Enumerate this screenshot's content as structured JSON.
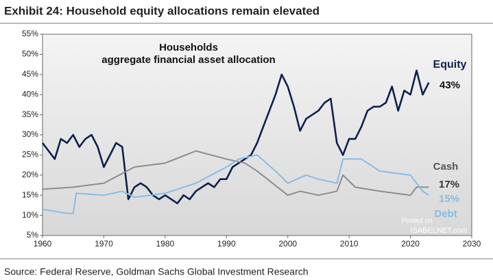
{
  "chart_data": {
    "type": "line",
    "title": "Exhibit 24: Household equity allocations remain elevated",
    "source": "Source: Federal Reserve, Goldman Sachs Global Investment Research",
    "annotations": [
      "Households",
      "aggregate financial asset allocation",
      "Equity",
      "43%",
      "Cash",
      "17%",
      "15%",
      "Debt",
      "Posted on",
      "ISABELNET.com"
    ],
    "xlim": [
      1960,
      2030
    ],
    "xticks": [
      1960,
      1970,
      1980,
      1990,
      2000,
      2010,
      2020,
      2030
    ],
    "ylim": [
      5,
      55
    ],
    "yticks": [
      {
        "value": 5,
        "label": "5%"
      },
      {
        "value": 10,
        "label": "10%"
      },
      {
        "value": 15,
        "label": "15%"
      },
      {
        "value": 20,
        "label": "20%"
      },
      {
        "value": 25,
        "label": "25%"
      },
      {
        "value": 30,
        "label": "30%"
      },
      {
        "value": 35,
        "label": "35%"
      },
      {
        "value": 40,
        "label": "40%"
      },
      {
        "value": 45,
        "label": "45%"
      },
      {
        "value": 50,
        "label": "50%"
      },
      {
        "value": 55,
        "label": "55%"
      }
    ],
    "series": [
      {
        "name": "Equity",
        "color": "#0d1f4d",
        "x": [
          1960,
          1961,
          1962,
          1963,
          1964,
          1965,
          1966,
          1967,
          1968,
          1969,
          1970,
          1971,
          1972,
          1973,
          1974,
          1975,
          1976,
          1977,
          1978,
          1979,
          1980,
          1981,
          1982,
          1983,
          1984,
          1985,
          1986,
          1987,
          1988,
          1989,
          1990,
          1991,
          1992,
          1993,
          1994,
          1995,
          1996,
          1997,
          1998,
          1999,
          2000,
          2001,
          2002,
          2003,
          2004,
          2005,
          2006,
          2007,
          2008,
          2009,
          2010,
          2011,
          2012,
          2013,
          2014,
          2015,
          2016,
          2017,
          2018,
          2019,
          2020,
          2021,
          2022,
          2023
        ],
        "values": [
          28,
          26,
          24,
          29,
          28,
          30,
          27,
          29,
          30,
          27,
          22,
          25,
          28,
          27,
          14,
          17,
          18,
          17,
          15,
          14,
          15,
          14,
          13,
          15,
          14,
          16,
          17,
          18,
          17,
          19,
          19,
          22,
          23,
          24,
          25,
          28,
          32,
          36,
          40,
          45,
          42,
          37,
          31,
          34,
          35,
          36,
          38,
          39,
          28,
          25,
          29,
          29,
          32,
          36,
          37,
          37,
          38,
          42,
          36,
          41,
          40,
          46,
          40,
          43
        ]
      },
      {
        "name": "Cash",
        "color": "#8c8c8c",
        "x": [
          1960,
          1965,
          1970,
          1975,
          1980,
          1985,
          1990,
          1993,
          1995,
          2000,
          2002,
          2005,
          2008,
          2009,
          2011,
          2015,
          2020,
          2021,
          2023
        ],
        "values": [
          16.5,
          17,
          18,
          22,
          23,
          26,
          24,
          23,
          21,
          15,
          16,
          15,
          16,
          20,
          17,
          16,
          15,
          17,
          17
        ]
      },
      {
        "name": "Debt",
        "color": "#85bde6",
        "x": [
          1960,
          1962,
          1964,
          1965,
          1965.5,
          1970,
          1973,
          1975,
          1980,
          1985,
          1990,
          1992,
          1995,
          1998,
          2000,
          2003,
          2005,
          2008,
          2009,
          2010,
          2012,
          2015,
          2020,
          2022,
          2023
        ],
        "values": [
          11.5,
          11,
          10.5,
          10.5,
          15.5,
          15,
          16,
          14.5,
          15.5,
          18,
          22,
          24,
          25,
          21,
          18,
          20,
          19,
          18,
          24,
          24,
          24,
          21,
          20,
          16,
          15
        ]
      }
    ]
  }
}
